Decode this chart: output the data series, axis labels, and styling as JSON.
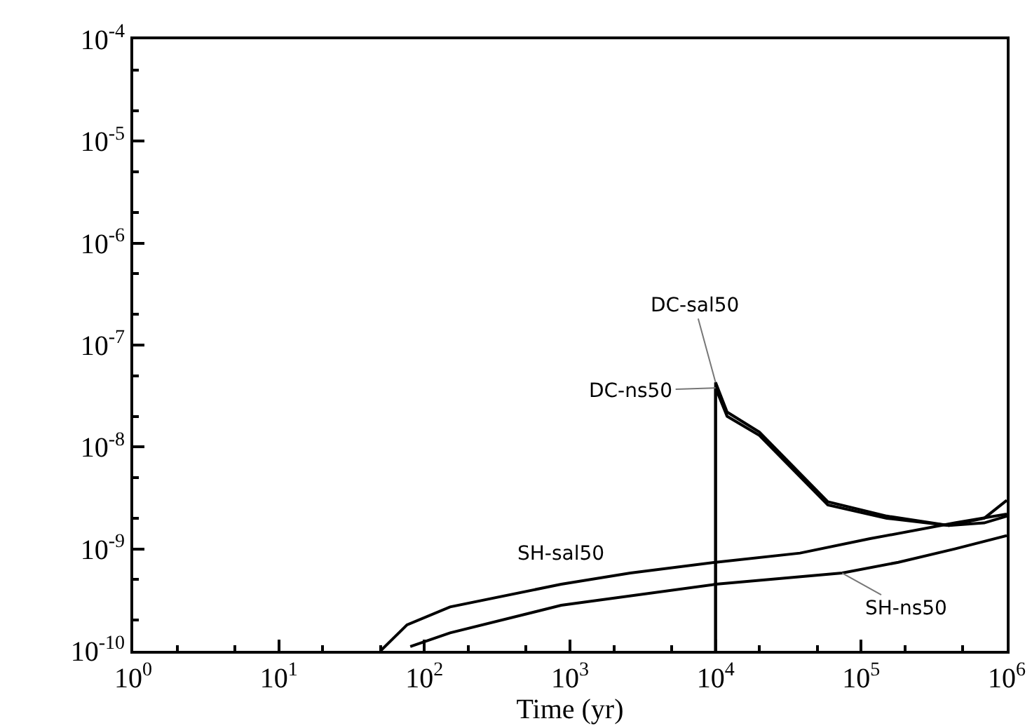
{
  "chart_data": {
    "type": "line",
    "xlabel": "Time (yr)",
    "log": "xy",
    "legend": false,
    "grid": false,
    "marker": "none",
    "line_style": "solid",
    "xlim": [
      1,
      1000000
    ],
    "ylim": [
      1e-10,
      0.0001
    ],
    "xticks": [
      {
        "value": 1,
        "label": "10$^{0}$"
      },
      {
        "value": 10,
        "label": "10$^{1}$"
      },
      {
        "value": 100,
        "label": "10$^{2}$"
      },
      {
        "value": 1000,
        "label": "10$^{3}$"
      },
      {
        "value": 10000,
        "label": "10$^{4}$"
      },
      {
        "value": 100000,
        "label": "10$^{5}$"
      },
      {
        "value": 1000000,
        "label": "10$^{6}$"
      }
    ],
    "yticks": [
      {
        "value": 1e-10,
        "label": "10$^{-10}$"
      },
      {
        "value": 1e-09,
        "label": "10$^{-9}$"
      },
      {
        "value": 1e-08,
        "label": "10$^{-8}$"
      },
      {
        "value": 1e-07,
        "label": "10$^{-7}$"
      },
      {
        "value": 1e-06,
        "label": "10$^{-6}$"
      },
      {
        "value": 1e-05,
        "label": "10$^{-5}$"
      },
      {
        "value": 0.0001,
        "label": "10$^{-4}$"
      }
    ],
    "series": [
      {
        "name": "DC-sal50",
        "color": "#000000",
        "x": [
          10000,
          10000,
          12000,
          20000,
          59000,
          150000,
          400000,
          700000,
          1000000
        ],
        "values": [
          1e-10,
          4.3e-08,
          2.2e-08,
          1.4e-08,
          2.9e-09,
          2.1e-09,
          1.7e-09,
          2e-09,
          3e-09
        ]
      },
      {
        "name": "DC-ns50",
        "color": "#000000",
        "x": [
          10000,
          10000,
          12000,
          20000,
          59000,
          150000,
          400000,
          700000,
          1000000
        ],
        "values": [
          1e-10,
          3.8e-08,
          2e-08,
          1.3e-08,
          2.7e-09,
          2e-09,
          1.7e-09,
          1.8e-09,
          2.1e-09
        ]
      },
      {
        "name": "SH-sal50",
        "color": "#000000",
        "x": [
          50,
          76,
          150,
          870,
          2600,
          10000,
          38000,
          115000,
          440000,
          1000000
        ],
        "values": [
          1e-10,
          1.8e-10,
          2.7e-10,
          4.5e-10,
          5.8e-10,
          7.4e-10,
          9.1e-10,
          1.26e-09,
          1.8e-09,
          2.2e-09
        ]
      },
      {
        "name": "SH-ns50",
        "color": "#000000",
        "x": [
          80,
          150,
          870,
          10000,
          74000,
          180000,
          440000,
          1000000
        ],
        "values": [
          1.1e-10,
          1.5e-10,
          2.8e-10,
          4.5e-10,
          5.8e-10,
          7.4e-10,
          1e-09,
          1.35e-09
        ]
      }
    ]
  }
}
